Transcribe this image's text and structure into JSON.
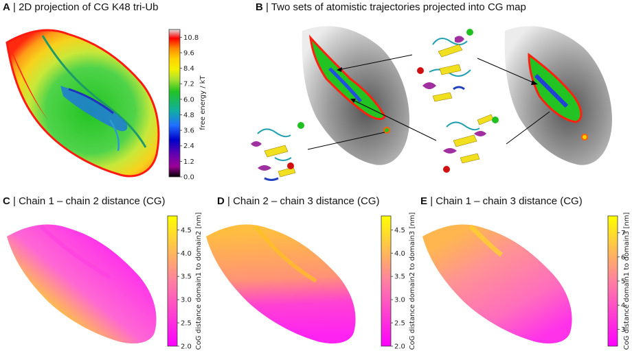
{
  "panels": {
    "A": {
      "letter": "A",
      "title": "| 2D projection of CG K48 tri-Ub"
    },
    "B": {
      "letter": "B",
      "title": "| Two sets of atomistic trajectories projected into CG map"
    },
    "C": {
      "letter": "C",
      "title": "| Chain 1 – chain 2 distance (CG)"
    },
    "D": {
      "letter": "D",
      "title": "| Chain 2 – chain 3 distance (CG)"
    },
    "E": {
      "letter": "E",
      "title": "| Chain 1 – chain 3 distance (CG)"
    }
  },
  "chart_data": [
    {
      "id": "A",
      "type": "heatmap",
      "title": "2D projection of CG K48 tri-Ub",
      "colorbar": {
        "label": "free energy / kT",
        "ticks": [
          "0.0",
          "1.2",
          "2.4",
          "3.6",
          "4.8",
          "6.0",
          "7.2",
          "8.4",
          "9.6",
          "10.8"
        ],
        "range": [
          0.0,
          11.4
        ],
        "colors": [
          "#e0e0e0",
          "#ff0000",
          "#ff8c00",
          "#ffd400",
          "#f4f000",
          "#a8e030",
          "#22c322",
          "#10b0a0",
          "#2070ff",
          "#0000c8",
          "#6600b0",
          "#9b0096",
          "#000000"
        ]
      }
    },
    {
      "id": "C",
      "type": "heatmap",
      "title": "Chain 1 – chain 2 distance (CG)",
      "colorbar": {
        "label": "CoG distance domain1 to domain2 [nm]",
        "ticks": [
          "2.0",
          "2.5",
          "3.0",
          "3.5",
          "4.0",
          "4.5"
        ],
        "range": [
          2.0,
          4.8
        ],
        "colors": [
          "#ffff00",
          "#ff00ff"
        ]
      }
    },
    {
      "id": "D",
      "type": "heatmap",
      "title": "Chain 2 – chain 3 distance (CG)",
      "colorbar": {
        "label": "CoG distance domain2 to domain3 [nm]",
        "ticks": [
          "2.0",
          "2.5",
          "3.0",
          "3.5",
          "4.0",
          "4.5"
        ],
        "range": [
          2.0,
          4.8
        ],
        "colors": [
          "#ffff00",
          "#ff00ff"
        ]
      }
    },
    {
      "id": "E",
      "type": "heatmap",
      "title": "Chain 1 – chain 3 distance (CG)",
      "colorbar": {
        "label": "CoG distance domain1 to domain3 [nm]",
        "ticks": [
          "3",
          "4",
          "5",
          "6",
          "7"
        ],
        "range": [
          2.3,
          7.7
        ],
        "colors": [
          "#ffff00",
          "#ff00ff"
        ]
      }
    }
  ]
}
